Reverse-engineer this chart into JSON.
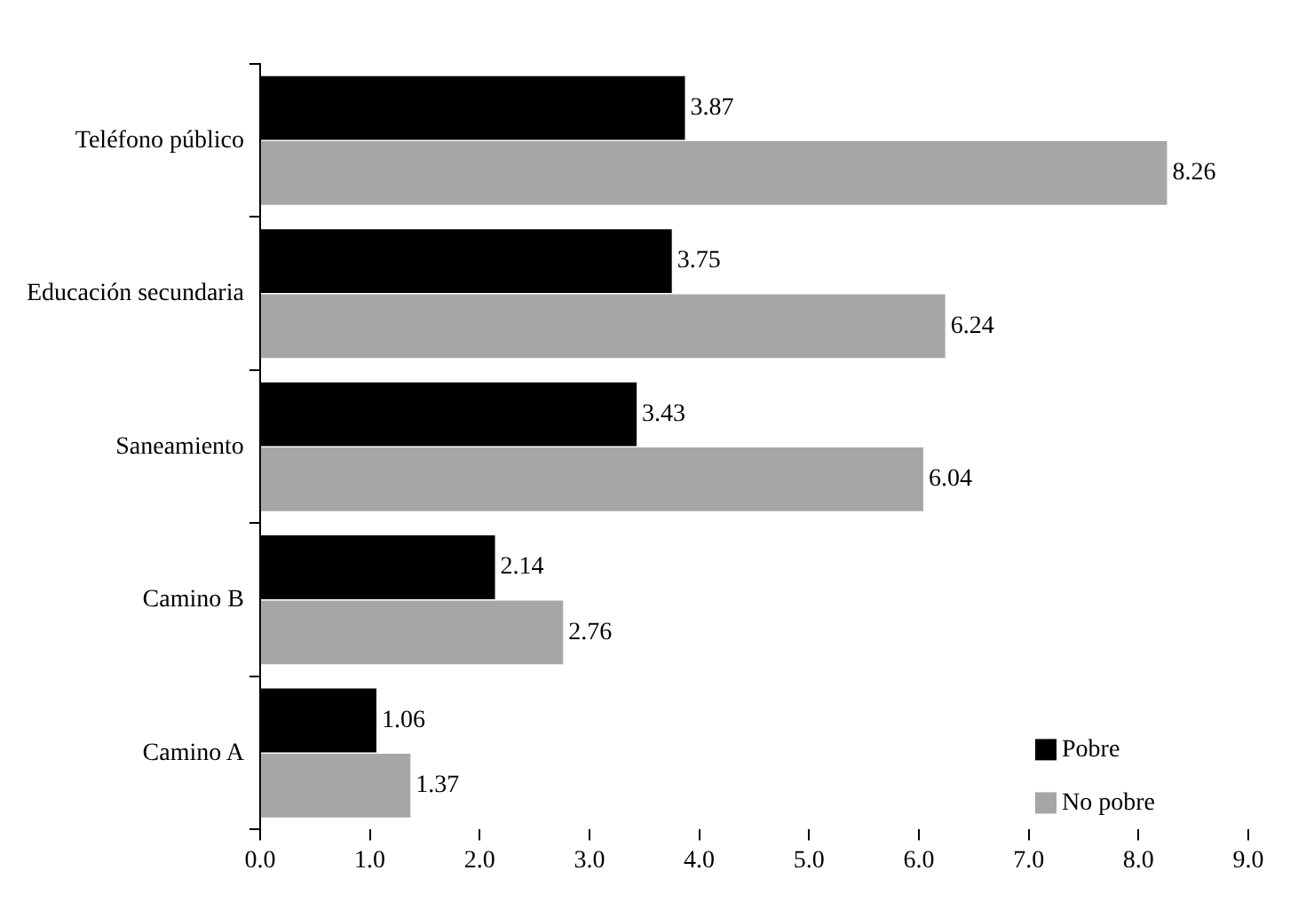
{
  "chart_data": {
    "type": "bar",
    "orientation": "horizontal",
    "categories": [
      "Teléfono público",
      "Educación secundaria",
      "Saneamiento",
      "Camino B",
      "Camino A"
    ],
    "series": [
      {
        "name": "Pobre",
        "color": "#000000",
        "values": [
          3.87,
          3.75,
          3.43,
          2.14,
          1.06
        ]
      },
      {
        "name": "No pobre",
        "color": "#a6a6a6",
        "values": [
          8.26,
          6.24,
          6.04,
          2.76,
          1.37
        ]
      }
    ],
    "xlim": [
      0,
      9
    ],
    "xticks": [
      {
        "value": 0,
        "label": "0.0"
      },
      {
        "value": 1,
        "label": "1.0"
      },
      {
        "value": 2,
        "label": "2.0"
      },
      {
        "value": 3,
        "label": "3.0"
      },
      {
        "value": 4,
        "label": "4.0"
      },
      {
        "value": 5,
        "label": "5.0"
      },
      {
        "value": 6,
        "label": "6.0"
      },
      {
        "value": 7,
        "label": "7.0"
      },
      {
        "value": 8,
        "label": "8.0"
      },
      {
        "value": 9,
        "label": "9.0"
      }
    ],
    "grid": false,
    "legend": "bottom right",
    "data_labels": true
  }
}
